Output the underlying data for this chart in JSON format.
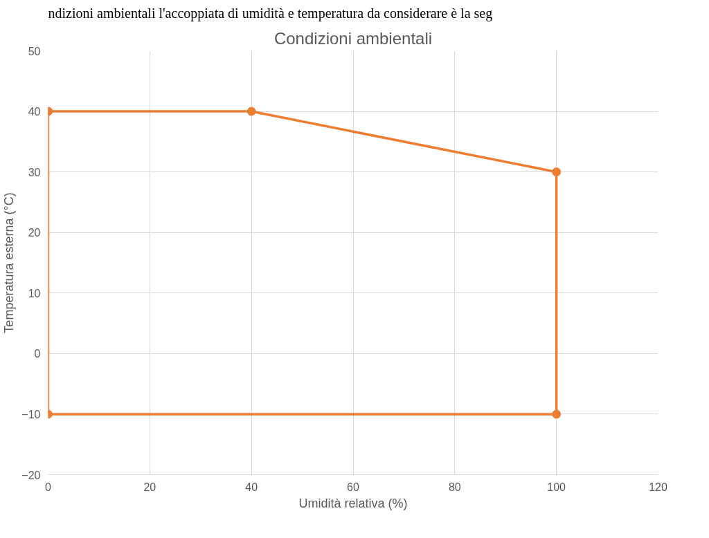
{
  "chart_data": {
    "type": "scatter",
    "title": "Condizioni ambientali",
    "xlabel": "Umidità relativa (%)",
    "ylabel": "Temperatura esterna (°C)",
    "annotations": [
      "ndizioni ambientali l'accoppiata di umidità e temperatura da considerare è la seg"
    ],
    "x": [
      0,
      40,
      100,
      100,
      0,
      0
    ],
    "series": [
      {
        "color": "#ed7d31",
        "values": [
          40,
          40,
          30,
          -10,
          -10,
          40
        ]
      }
    ],
    "xlim": [
      0,
      120
    ],
    "xticks": [
      0,
      20,
      40,
      60,
      80,
      100,
      120
    ],
    "ylim": [
      -20,
      50
    ],
    "yticks": [
      -20,
      -10,
      0,
      10,
      20,
      30,
      40,
      50
    ],
    "grid": true,
    "marker": "circle",
    "line_style": "solid"
  }
}
